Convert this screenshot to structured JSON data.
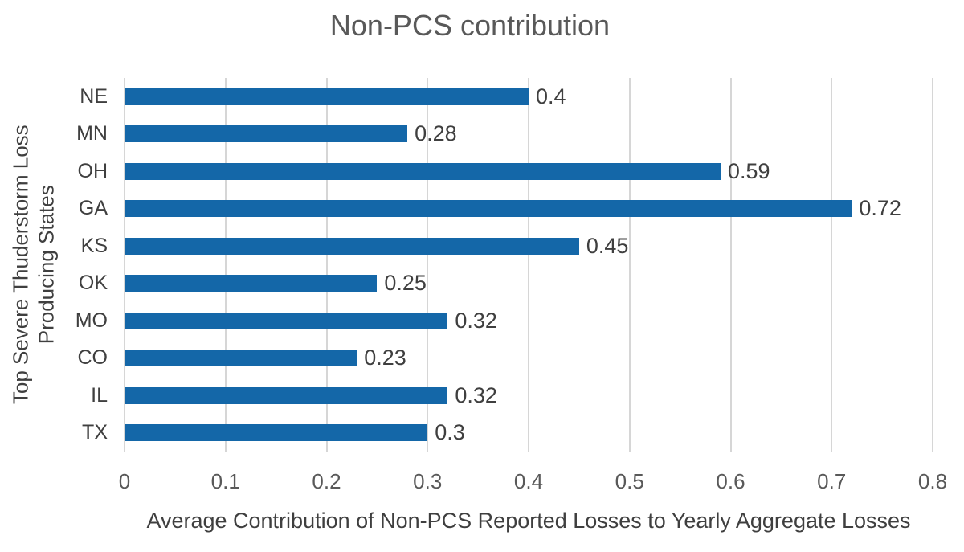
{
  "chart_data": {
    "type": "bar",
    "orientation": "horizontal",
    "title": "Non-PCS contribution",
    "xlabel": "Average Contribution of Non-PCS Reported Losses to Yearly Aggregate Losses",
    "ylabel": "Top Severe Thuderstorm Loss Producing States",
    "ylabel_lines": [
      "Top Severe Thuderstorm Loss",
      "Producing States"
    ],
    "categories": [
      "NE",
      "MN",
      "OH",
      "GA",
      "KS",
      "OK",
      "MO",
      "CO",
      "IL",
      "TX"
    ],
    "values": [
      0.4,
      0.28,
      0.59,
      0.72,
      0.45,
      0.25,
      0.32,
      0.23,
      0.32,
      0.3
    ],
    "value_labels": [
      "0.4",
      "0.28",
      "0.59",
      "0.72",
      "0.45",
      "0.25",
      "0.32",
      "0.23",
      "0.32",
      "0.3"
    ],
    "xlim": [
      0,
      0.8
    ],
    "x_ticks": [
      "0",
      "0.1",
      "0.2",
      "0.3",
      "0.4",
      "0.5",
      "0.6",
      "0.7",
      "0.8"
    ],
    "grid": true,
    "legend": false,
    "colors": {
      "bar": "#1467a8",
      "gridline": "#d6d6d6",
      "title": "#595959",
      "label": "#3f3f3f",
      "tick": "#595959",
      "background": "#ffffff"
    }
  }
}
